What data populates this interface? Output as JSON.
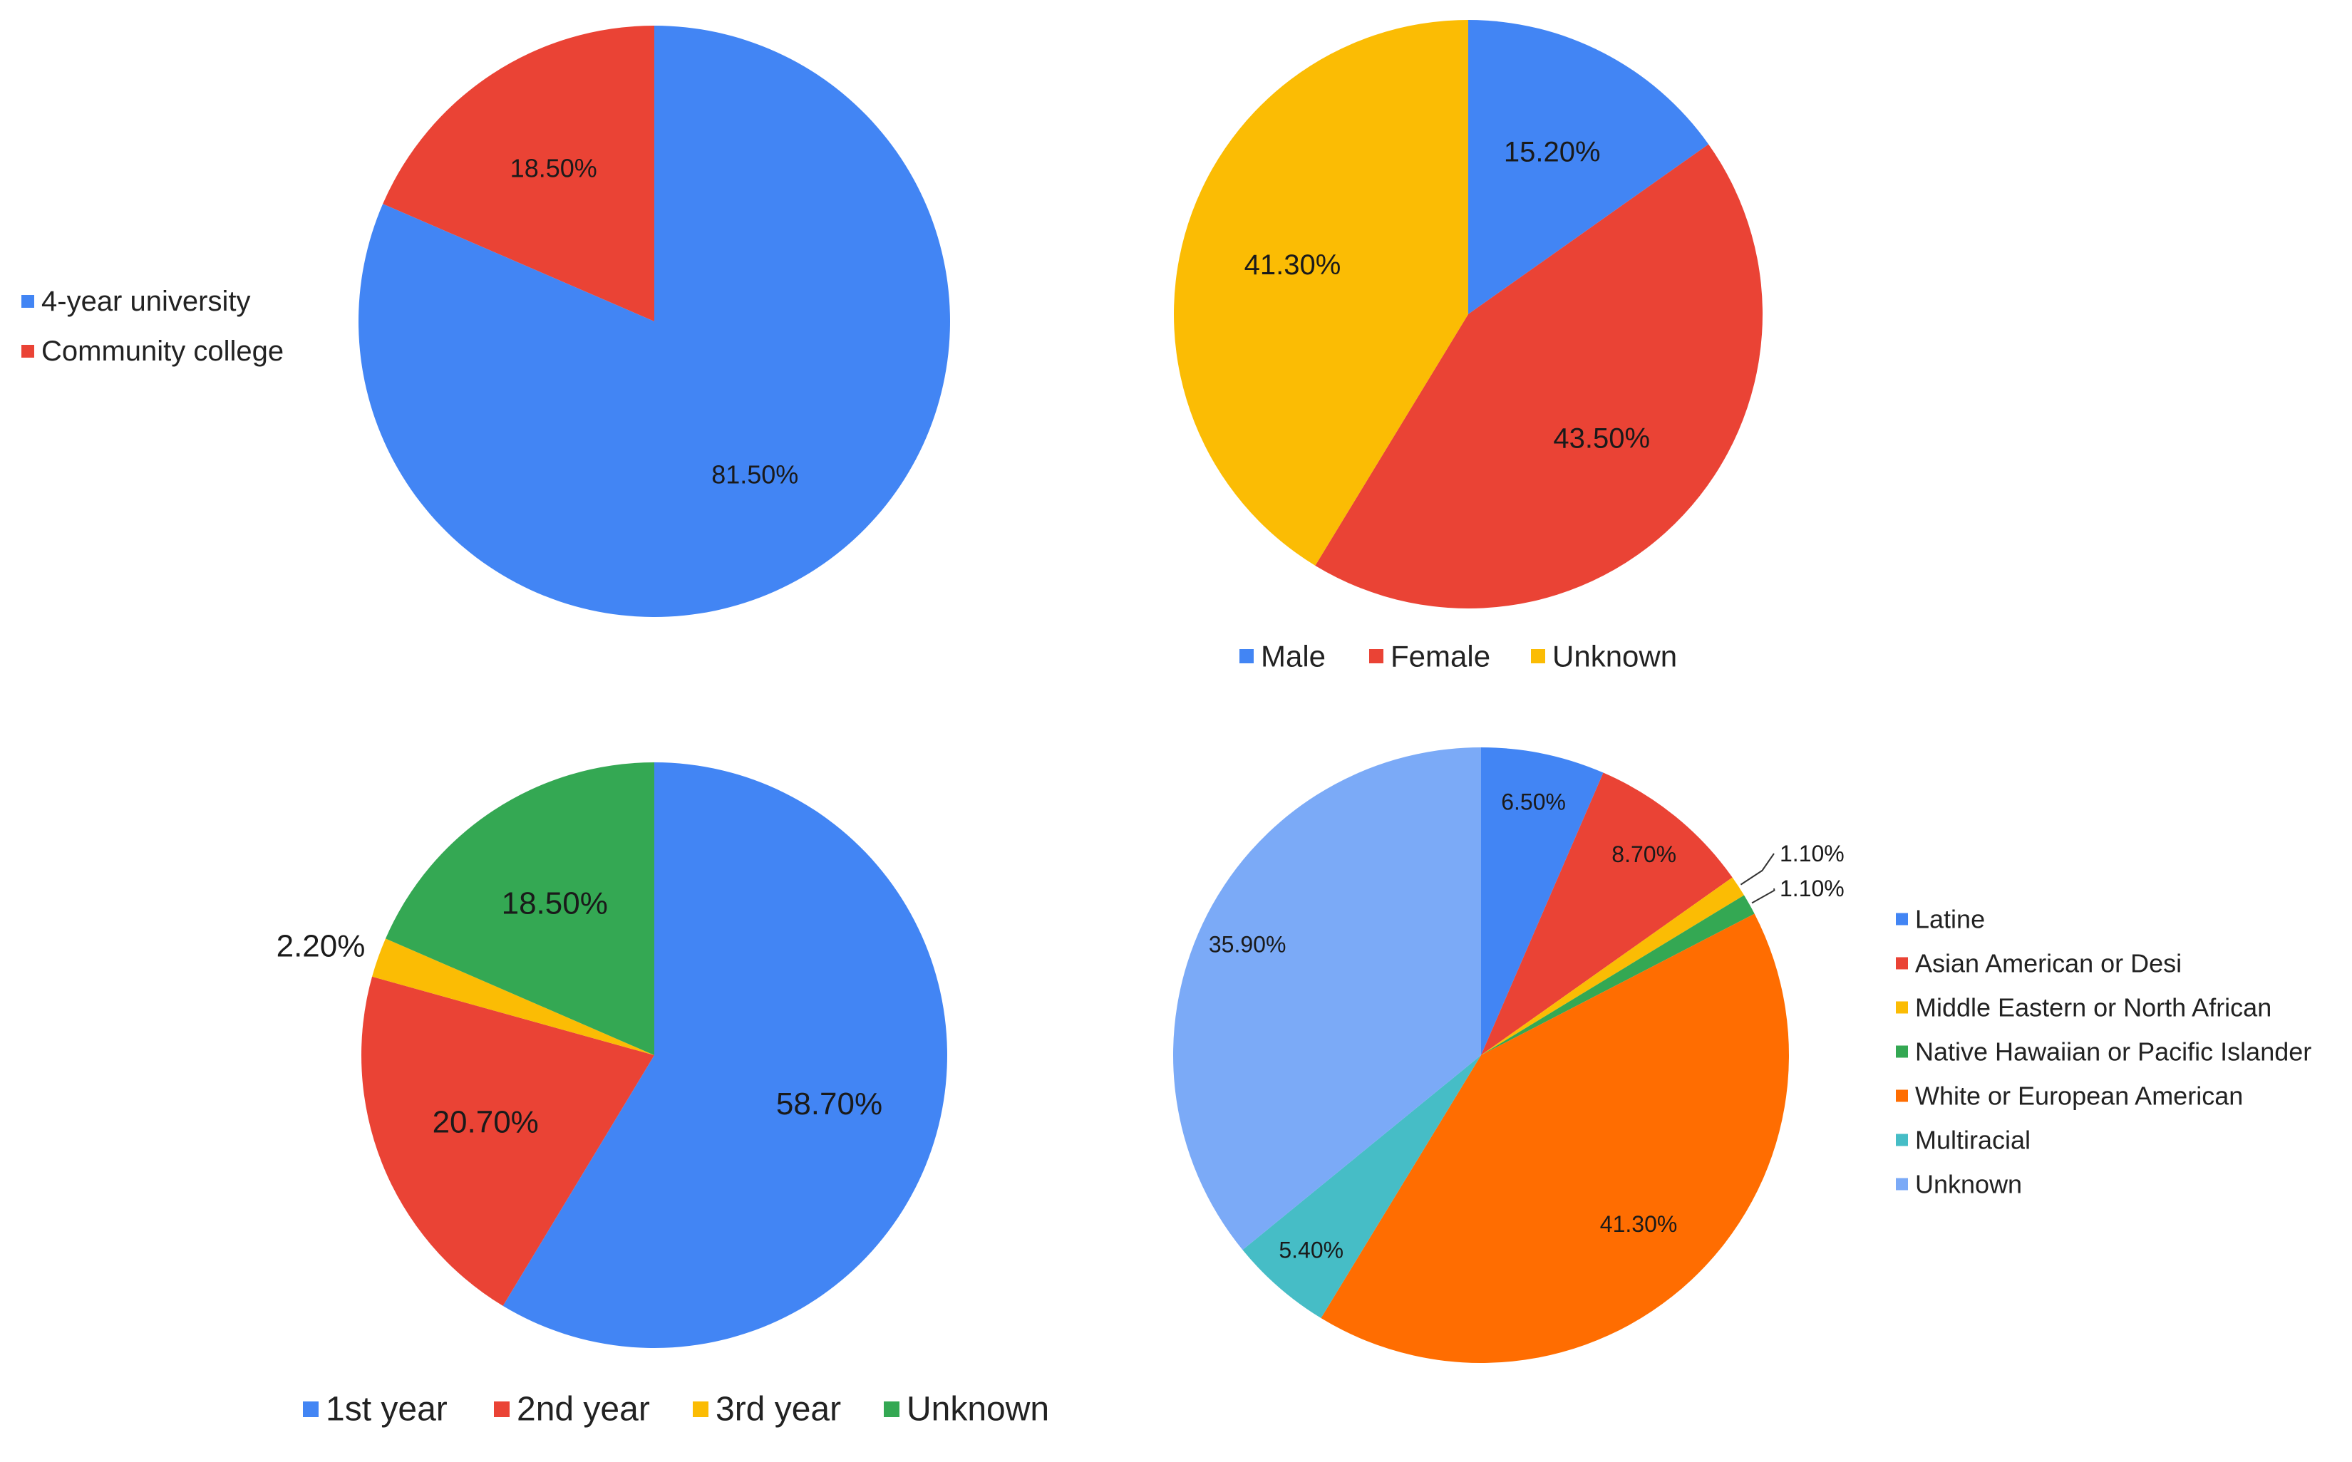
{
  "chart_data": [
    {
      "type": "pie",
      "title": "",
      "legend_position": "left",
      "slices": [
        {
          "name": "4-year university",
          "value": 81.5,
          "label": "81.50%",
          "color": "#4285F4"
        },
        {
          "name": "Community college",
          "value": 18.5,
          "label": "18.50%",
          "color": "#EA4335"
        }
      ]
    },
    {
      "type": "pie",
      "title": "",
      "legend_position": "bottom",
      "slices": [
        {
          "name": "Male",
          "value": 15.2,
          "label": "15.20%",
          "color": "#4285F4"
        },
        {
          "name": "Female",
          "value": 43.5,
          "label": "43.50%",
          "color": "#EA4335"
        },
        {
          "name": "Unknown",
          "value": 41.3,
          "label": "41.30%",
          "color": "#FBBC04"
        }
      ]
    },
    {
      "type": "pie",
      "title": "",
      "legend_position": "bottom",
      "slices": [
        {
          "name": "1st year",
          "value": 58.7,
          "label": "58.70%",
          "color": "#4285F4"
        },
        {
          "name": "2nd year",
          "value": 20.7,
          "label": "20.70%",
          "color": "#EA4335"
        },
        {
          "name": "3rd year",
          "value": 2.2,
          "label": "2.20%",
          "color": "#FBBC04"
        },
        {
          "name": "Unknown",
          "value": 18.5,
          "label": "18.50%",
          "color": "#34A853"
        }
      ]
    },
    {
      "type": "pie",
      "title": "",
      "legend_position": "right",
      "slices": [
        {
          "name": "Latine",
          "value": 6.5,
          "label": "6.50%",
          "color": "#4285F4"
        },
        {
          "name": "Asian American or Desi",
          "value": 8.7,
          "label": "8.70%",
          "color": "#EA4335"
        },
        {
          "name": "Middle Eastern or North African",
          "value": 1.1,
          "label": "1.10%",
          "color": "#FBBC04"
        },
        {
          "name": "Native Hawaiian or Pacific Islander",
          "value": 1.1,
          "label": "1.10%",
          "color": "#34A853"
        },
        {
          "name": "White or European American",
          "value": 41.3,
          "label": "41.30%",
          "color": "#FF6D01"
        },
        {
          "name": "Multiracial",
          "value": 5.4,
          "label": "5.40%",
          "color": "#46BDC6"
        },
        {
          "name": "Unknown",
          "value": 35.9,
          "label": "35.90%",
          "color": "#7BAAF7"
        }
      ]
    }
  ]
}
